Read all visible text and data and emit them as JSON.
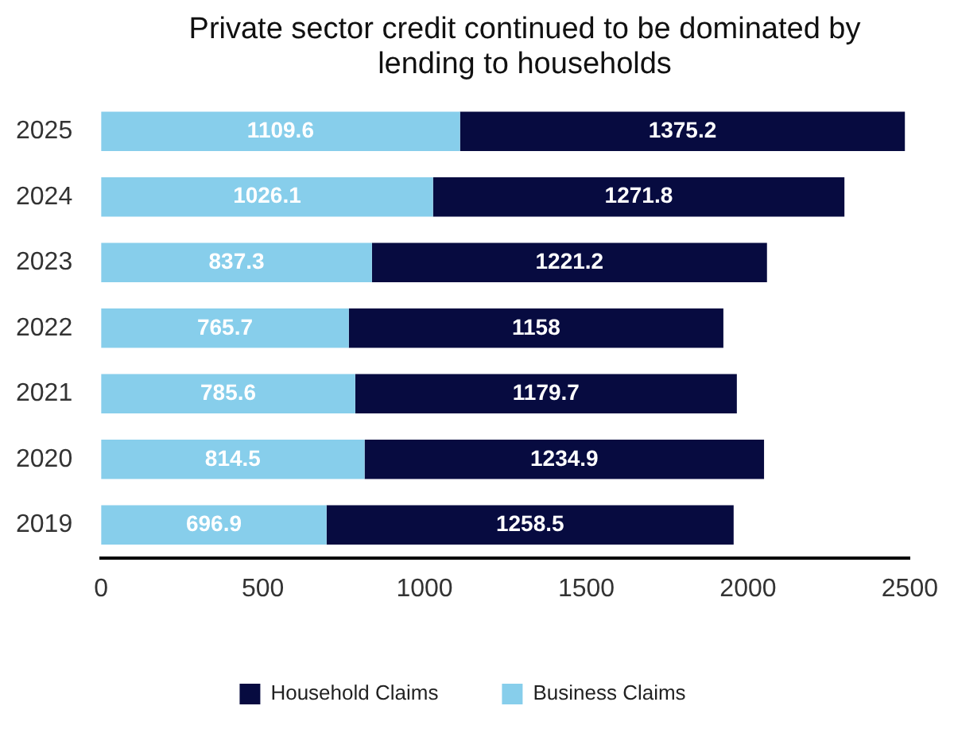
{
  "chart_data": {
    "type": "bar",
    "orientation": "horizontal",
    "stacked": true,
    "title": "Private sector credit continued to be dominated by lending to households",
    "categories": [
      "2025",
      "2024",
      "2023",
      "2022",
      "2021",
      "2020",
      "2019"
    ],
    "series": [
      {
        "name": "Business Claims",
        "color": "#87ceeb",
        "values": [
          1109.6,
          1026.1,
          837.3,
          765.7,
          785.6,
          814.5,
          696.9
        ]
      },
      {
        "name": "Household Claims",
        "color": "#070b40",
        "values": [
          1375.2,
          1271.8,
          1221.2,
          1158,
          1179.7,
          1234.9,
          1258.5
        ]
      }
    ],
    "xlim": [
      0,
      2500
    ],
    "xticks": [
      0,
      500,
      1000,
      1500,
      2000,
      2500
    ],
    "data_labels": true,
    "grid": false,
    "legend": "bottom"
  }
}
